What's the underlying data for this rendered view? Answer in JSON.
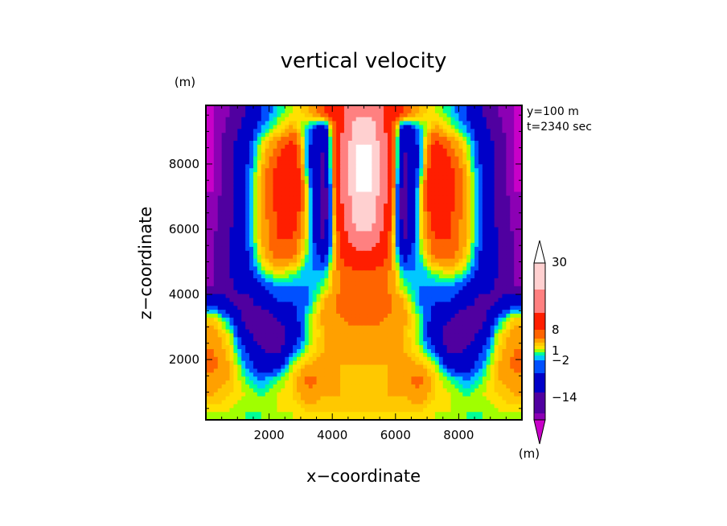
{
  "chart_data": {
    "type": "heatmap",
    "title": "vertical velocity",
    "xlabel": "x−coordinate",
    "ylabel": "z−coordinate",
    "y_unit_label": "(m)",
    "colorbar_unit_label": "(m)",
    "annotation_lines": [
      "y=100 m",
      "t=2340 sec"
    ],
    "xlim": [
      0,
      10000
    ],
    "ylim": [
      150,
      9800
    ],
    "xticks": [
      2000,
      4000,
      6000,
      8000
    ],
    "xtick_labels": [
      "2000",
      "4000",
      "6000",
      "8000"
    ],
    "yticks": [
      2000,
      4000,
      6000,
      8000
    ],
    "ytick_labels": [
      "2000",
      "4000",
      "6000",
      "8000"
    ],
    "colorbar": {
      "colors": [
        "#c800c8",
        "#8c00b4",
        "#5000a0",
        "#0000c8",
        "#0050ff",
        "#00c8ff",
        "#00ff96",
        "#a0ff00",
        "#ffe000",
        "#ffc800",
        "#ffa000",
        "#ff6400",
        "#ff1e00",
        "#ff8080",
        "#ffd0d0",
        "#ffffff"
      ],
      "label_values": [
        "30",
        "8",
        "1",
        "−2",
        "−14"
      ],
      "label_positions": [
        31,
        11,
        1,
        -1.8,
        -14
      ]
    },
    "field": {
      "description_rows_are_z_top_to_bottom": true,
      "nx": 20,
      "nz": 20,
      "values": [
        [
          -16,
          -14,
          -10,
          -4,
          -1,
          1,
          3,
          8,
          14,
          22,
          22,
          14,
          8,
          3,
          1,
          -1,
          -4,
          -10,
          -14,
          -16
        ],
        [
          -16,
          -13,
          -8,
          -2,
          1,
          4,
          -2,
          -8,
          14,
          28,
          28,
          14,
          -8,
          -2,
          4,
          1,
          -2,
          -8,
          -13,
          -16
        ],
        [
          -16,
          -12,
          -6,
          1,
          5,
          10,
          -3,
          -10,
          16,
          30,
          30,
          16,
          -10,
          -3,
          10,
          5,
          1,
          -6,
          -12,
          -16
        ],
        [
          -16,
          -11,
          -5,
          2,
          8,
          14,
          -4,
          -12,
          18,
          31,
          31,
          18,
          -12,
          -4,
          14,
          8,
          2,
          -5,
          -11,
          -16
        ],
        [
          -16,
          -11,
          -4,
          3,
          10,
          16,
          -2,
          -13,
          18,
          31,
          31,
          18,
          -13,
          -2,
          16,
          10,
          3,
          -4,
          -11,
          -16
        ],
        [
          -16,
          -11,
          -4,
          3,
          10,
          16,
          0,
          -14,
          16,
          30,
          30,
          16,
          -14,
          0,
          16,
          10,
          3,
          -4,
          -11,
          -16
        ],
        [
          -15,
          -11,
          -4,
          3,
          9,
          14,
          0,
          -14,
          14,
          28,
          28,
          14,
          -14,
          0,
          14,
          9,
          3,
          -4,
          -11,
          -15
        ],
        [
          -15,
          -11,
          -4,
          3,
          8,
          10,
          0,
          -13,
          12,
          26,
          26,
          12,
          -13,
          0,
          10,
          8,
          3,
          -4,
          -11,
          -15
        ],
        [
          -14,
          -10,
          -4,
          3,
          8,
          8,
          0,
          -12,
          10,
          22,
          22,
          10,
          -12,
          0,
          8,
          8,
          3,
          -4,
          -10,
          -14
        ],
        [
          -14,
          -10,
          -5,
          2,
          6,
          6,
          -1,
          -6,
          8,
          14,
          14,
          8,
          -6,
          -1,
          6,
          6,
          2,
          -5,
          -10,
          -14
        ],
        [
          -14,
          -10,
          -6,
          0,
          2,
          1,
          -2,
          -2,
          6,
          8,
          8,
          6,
          -2,
          -2,
          1,
          2,
          0,
          -6,
          -10,
          -14
        ],
        [
          -14,
          -11,
          -8,
          -4,
          -2,
          -2,
          -2,
          0,
          5,
          7,
          7,
          5,
          0,
          -2,
          -2,
          -2,
          -4,
          -8,
          -11,
          -14
        ],
        [
          -6,
          -10,
          -12,
          -8,
          -4,
          -4,
          -2,
          3,
          6,
          8,
          8,
          6,
          3,
          -2,
          -4,
          -4,
          -8,
          -12,
          -10,
          -6
        ],
        [
          2,
          -3,
          -12,
          -14,
          -10,
          -6,
          0,
          4,
          5,
          6,
          6,
          5,
          4,
          0,
          -6,
          -10,
          -14,
          -12,
          -3,
          2
        ],
        [
          4,
          1,
          -8,
          -14,
          -14,
          -8,
          0,
          3,
          4,
          4,
          4,
          4,
          3,
          0,
          -8,
          -14,
          -14,
          -8,
          1,
          4
        ],
        [
          5,
          2,
          -4,
          -10,
          -12,
          -4,
          1,
          3,
          4,
          4,
          4,
          4,
          3,
          1,
          -4,
          -12,
          -10,
          -4,
          2,
          5
        ],
        [
          6,
          3,
          -2,
          -6,
          -6,
          1,
          3,
          4,
          3,
          3,
          3,
          3,
          4,
          3,
          1,
          -6,
          -6,
          -2,
          3,
          6
        ],
        [
          4,
          3,
          0,
          -2,
          0,
          2,
          6,
          4,
          3,
          3,
          3,
          3,
          4,
          6,
          2,
          0,
          -2,
          0,
          3,
          4
        ],
        [
          3,
          2,
          1,
          0,
          1,
          2,
          4,
          3,
          3,
          3,
          3,
          3,
          3,
          4,
          2,
          1,
          0,
          1,
          2,
          3
        ],
        [
          1,
          1,
          0,
          0,
          1,
          1,
          2,
          2,
          2,
          2,
          2,
          2,
          2,
          2,
          1,
          1,
          0,
          0,
          1,
          1
        ]
      ]
    }
  }
}
